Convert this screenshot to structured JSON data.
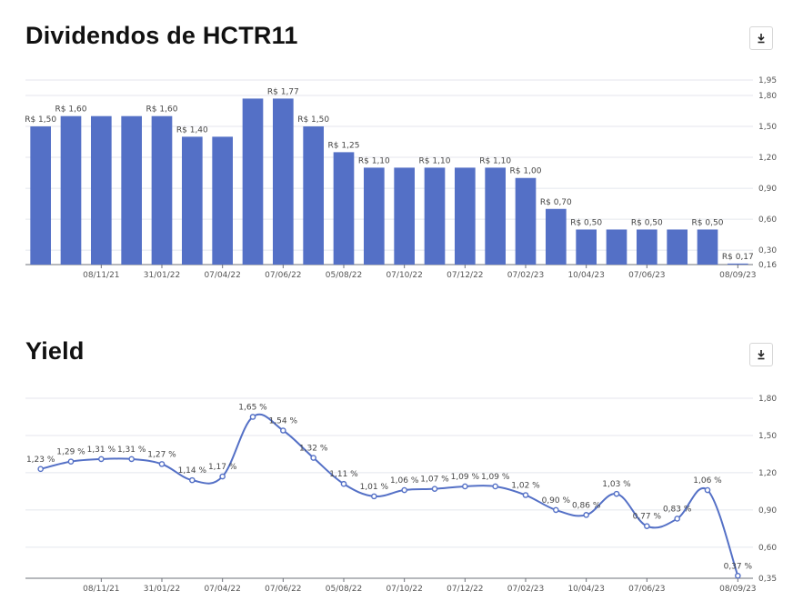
{
  "page": {
    "chart1_title": "Dividendos de HCTR11",
    "chart2_title": "Yield"
  },
  "icons": {
    "download": "download-icon"
  },
  "colors": {
    "bar": "#5470c6",
    "line": "#5470c6",
    "grid": "#e4e6ee"
  },
  "chart_data": [
    {
      "type": "bar",
      "title": "Dividendos de HCTR11",
      "values": [
        1.5,
        1.6,
        1.6,
        1.6,
        1.6,
        1.4,
        1.4,
        1.77,
        1.77,
        1.5,
        1.25,
        1.1,
        1.1,
        1.1,
        1.1,
        1.1,
        1.0,
        0.7,
        0.5,
        0.5,
        0.5,
        0.5,
        0.5,
        0.17
      ],
      "data_labels": [
        "R$ 1,50",
        "R$ 1,60",
        "",
        "",
        "R$ 1,60",
        "R$ 1,40",
        "",
        "",
        "R$ 1,77",
        "R$ 1,50",
        "R$ 1,25",
        "R$ 1,10",
        "",
        "R$ 1,10",
        "",
        "R$ 1,10",
        "R$ 1,00",
        "R$ 0,70",
        "R$ 0,50",
        "",
        "R$ 0,50",
        "",
        "R$ 0,50",
        "R$ 0,17"
      ],
      "x_tick_labels": [
        {
          "index": 2,
          "label": "08/11/21"
        },
        {
          "index": 4,
          "label": "31/01/22"
        },
        {
          "index": 6,
          "label": "07/04/22"
        },
        {
          "index": 8,
          "label": "07/06/22"
        },
        {
          "index": 10,
          "label": "05/08/22"
        },
        {
          "index": 12,
          "label": "07/10/22"
        },
        {
          "index": 14,
          "label": "07/12/22"
        },
        {
          "index": 16,
          "label": "07/02/23"
        },
        {
          "index": 18,
          "label": "10/04/23"
        },
        {
          "index": 20,
          "label": "07/06/23"
        },
        {
          "index": 23,
          "label": "08/09/23"
        }
      ],
      "y_ticks": [
        {
          "value": 0.16,
          "label": "0,16"
        },
        {
          "value": 0.3,
          "label": "0,30"
        },
        {
          "value": 0.6,
          "label": "0,60"
        },
        {
          "value": 0.9,
          "label": "0,90"
        },
        {
          "value": 1.2,
          "label": "1,20"
        },
        {
          "value": 1.5,
          "label": "1,50"
        },
        {
          "value": 1.8,
          "label": "1,80"
        },
        {
          "value": 1.95,
          "label": "1,95"
        }
      ],
      "ylim": [
        0.16,
        1.95
      ],
      "grid": true
    },
    {
      "type": "line",
      "title": "Yield",
      "values": [
        1.23,
        1.29,
        1.31,
        1.31,
        1.27,
        1.14,
        1.17,
        1.65,
        1.54,
        1.32,
        1.11,
        1.01,
        1.06,
        1.07,
        1.09,
        1.09,
        1.02,
        0.9,
        0.86,
        1.03,
        0.77,
        0.83,
        1.06,
        0.37
      ],
      "data_labels": [
        "1,23 %",
        "1,29 %",
        "1,31 %",
        "1,31 %",
        "1,27 %",
        "1,14 %",
        "1,17 %",
        "1,65 %",
        "1,54 %",
        "1,32 %",
        "1,11 %",
        "1,01 %",
        "1,06 %",
        "1,07 %",
        "1,09 %",
        "1,09 %",
        "1,02 %",
        "0,90 %",
        "0,86 %",
        "1,03 %",
        "0,77 %",
        "0,83 %",
        "1,06 %",
        "0,37 %"
      ],
      "x_tick_labels": [
        {
          "index": 2,
          "label": "08/11/21"
        },
        {
          "index": 4,
          "label": "31/01/22"
        },
        {
          "index": 6,
          "label": "07/04/22"
        },
        {
          "index": 8,
          "label": "07/06/22"
        },
        {
          "index": 10,
          "label": "05/08/22"
        },
        {
          "index": 12,
          "label": "07/10/22"
        },
        {
          "index": 14,
          "label": "07/12/22"
        },
        {
          "index": 16,
          "label": "07/02/23"
        },
        {
          "index": 18,
          "label": "10/04/23"
        },
        {
          "index": 20,
          "label": "07/06/23"
        },
        {
          "index": 23,
          "label": "08/09/23"
        }
      ],
      "y_ticks": [
        {
          "value": 0.35,
          "label": "0,35"
        },
        {
          "value": 0.6,
          "label": "0,60"
        },
        {
          "value": 0.9,
          "label": "0,90"
        },
        {
          "value": 1.2,
          "label": "1,20"
        },
        {
          "value": 1.5,
          "label": "1,50"
        },
        {
          "value": 1.8,
          "label": "1,80"
        }
      ],
      "ylim": [
        0.35,
        1.8
      ],
      "grid": true
    }
  ]
}
